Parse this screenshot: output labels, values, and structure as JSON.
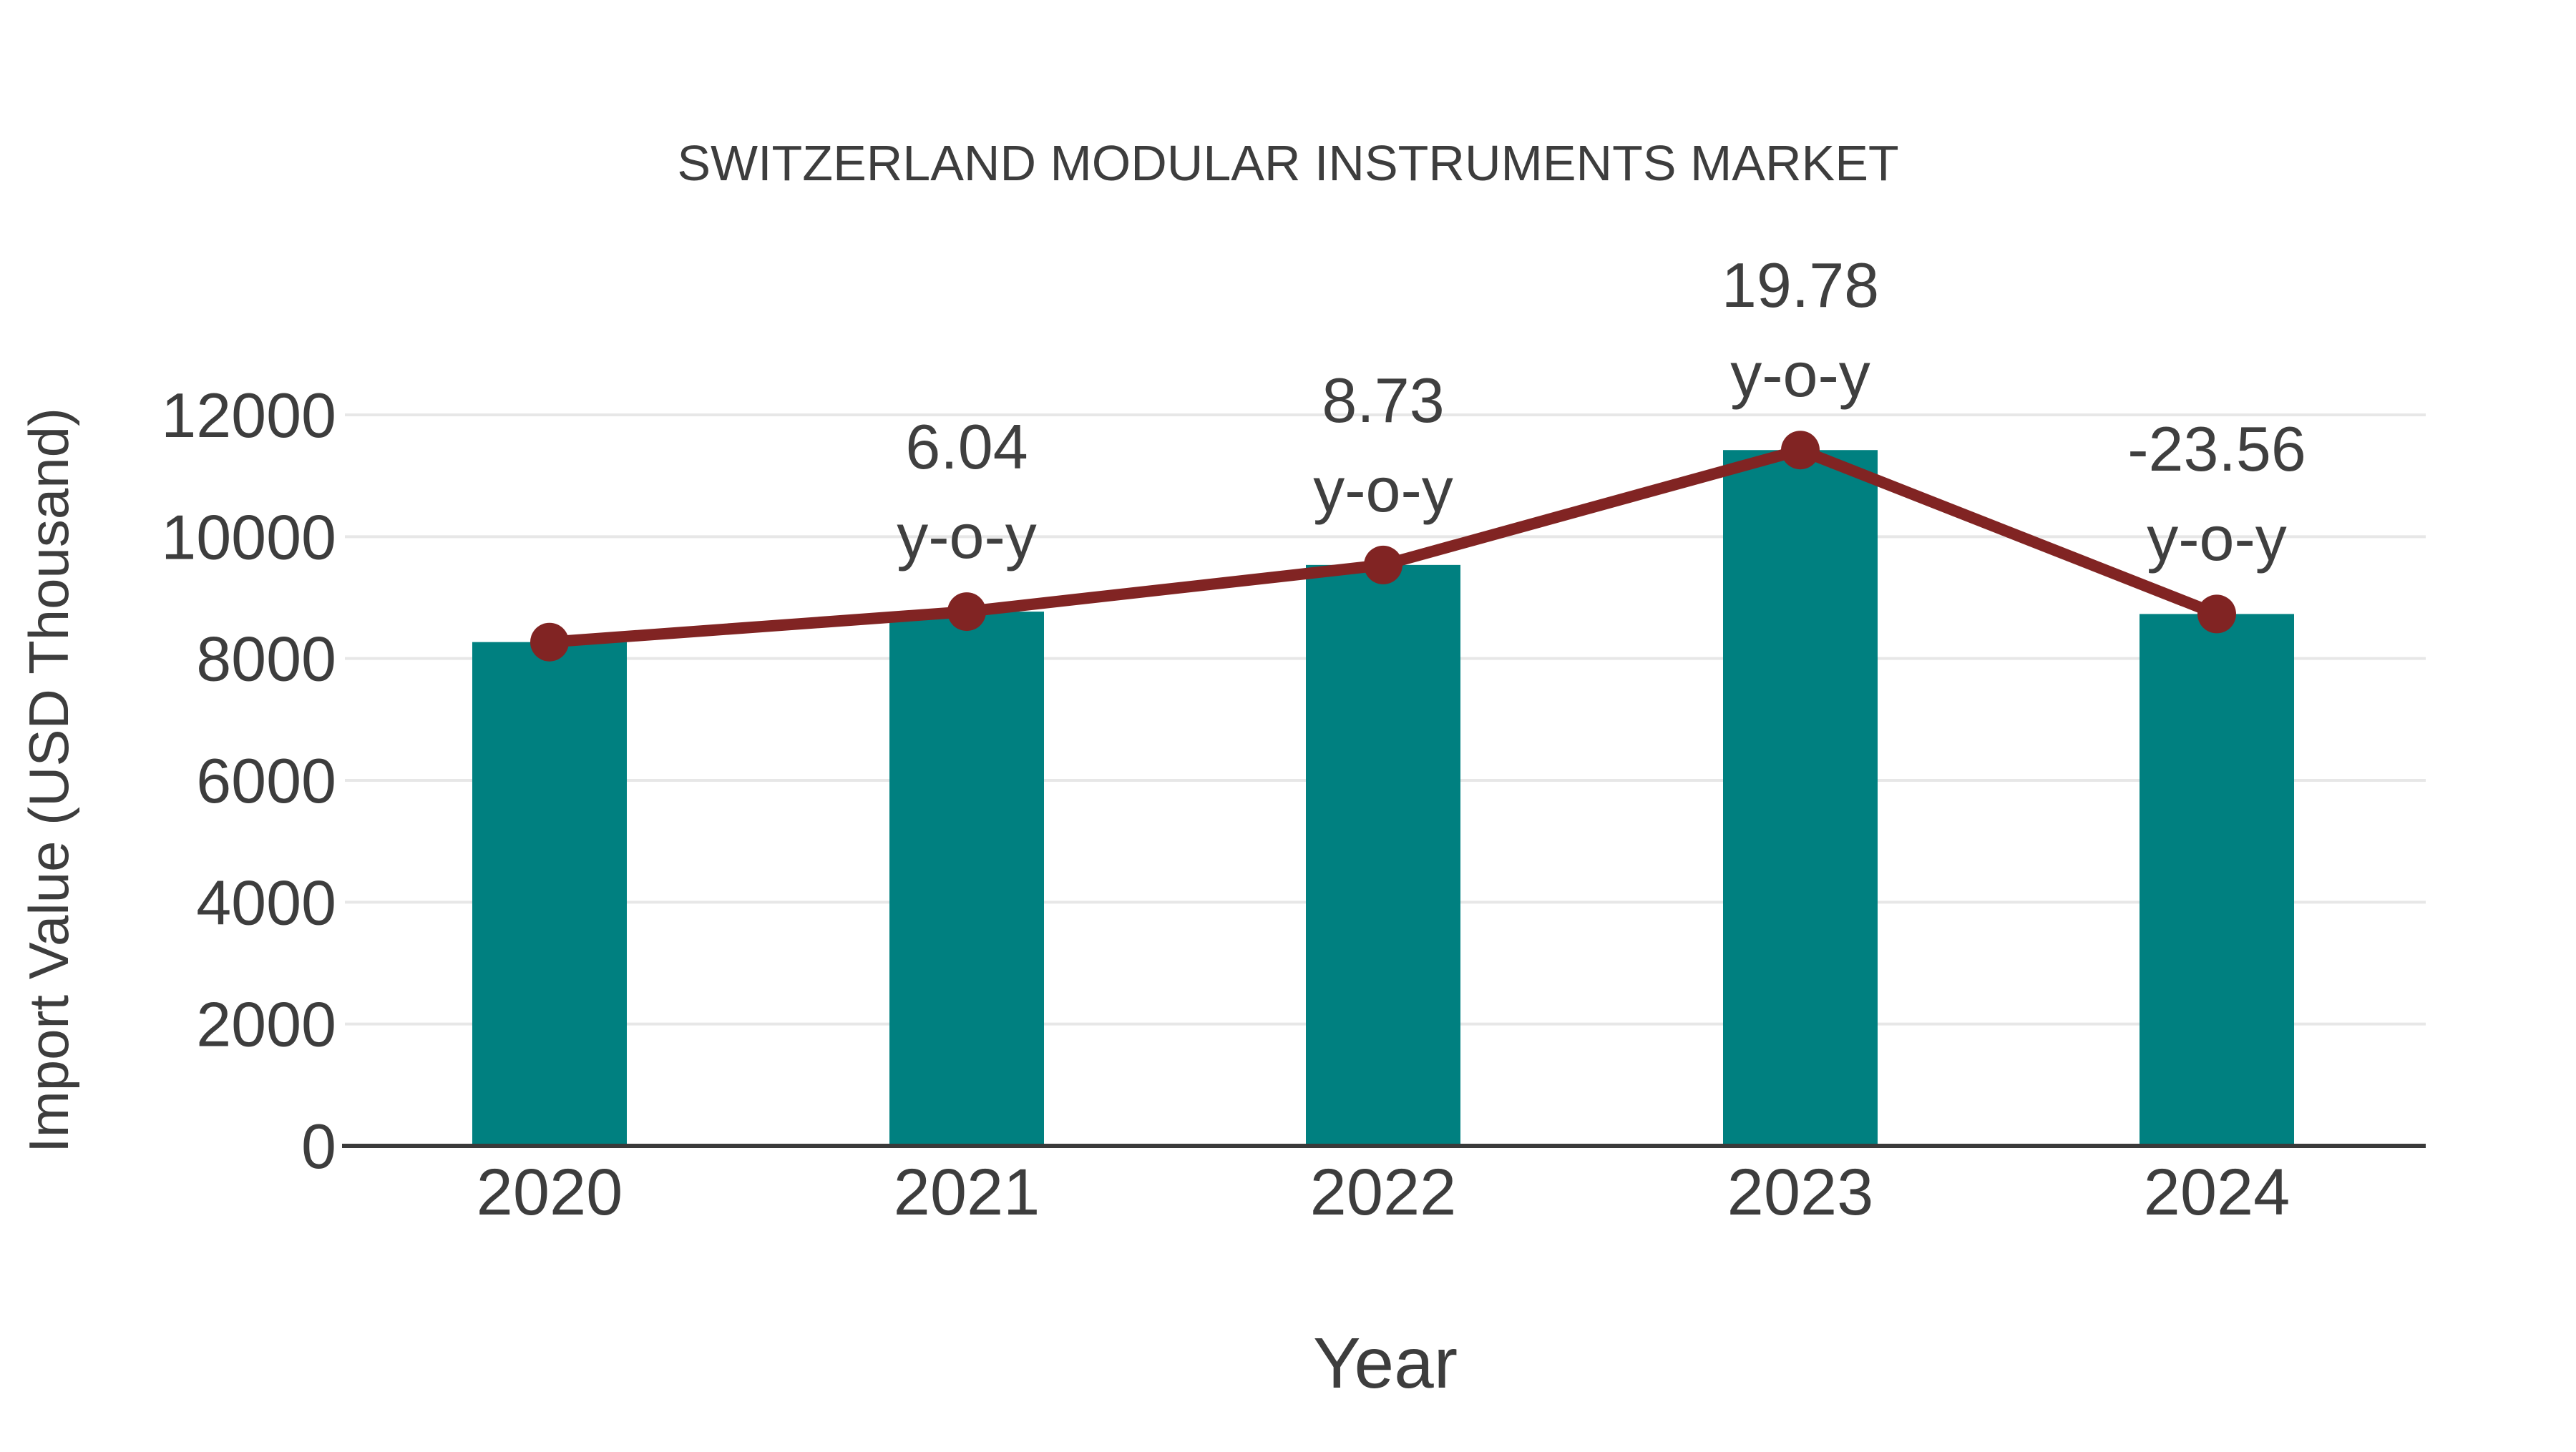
{
  "chart_data": {
    "type": "bar",
    "title": "SWITZERLAND MODULAR INSTRUMENTS MARKET",
    "xlabel": "Year",
    "ylabel": "Import Value (USD Thousand)",
    "categories": [
      "2020",
      "2021",
      "2022",
      "2023",
      "2024"
    ],
    "series": [
      {
        "name": "Import Value (USD Thousand)",
        "type": "bar",
        "color": "#008080",
        "values": [
          8270,
          8770,
          9536,
          11422,
          8731
        ]
      },
      {
        "name": "y-o-y",
        "type": "line",
        "color": "#812423",
        "plotted_at_bar_values": [
          8270,
          8770,
          9536,
          11422,
          8731
        ],
        "yoy_percent": [
          null,
          6.04,
          8.73,
          19.78,
          -23.56
        ]
      }
    ],
    "annotations": [
      {
        "category": "2021",
        "lines": [
          "6.04",
          "y-o-y"
        ]
      },
      {
        "category": "2022",
        "lines": [
          "8.73",
          "y-o-y"
        ]
      },
      {
        "category": "2023",
        "lines": [
          "19.78",
          "y-o-y"
        ]
      },
      {
        "category": "2024",
        "lines": [
          "-23.56",
          "y-o-y"
        ]
      }
    ],
    "ylim": [
      0,
      12000
    ],
    "yticks": [
      0,
      2000,
      4000,
      6000,
      8000,
      10000,
      12000
    ],
    "grid": "horizontal",
    "legend_position": "none",
    "colors": {
      "bar": "#008080",
      "line": "#812423",
      "marker": "#812423",
      "text": "#3d3d3d",
      "gridline": "#e7e7e7",
      "axis_line": "#3a3a3a",
      "background": "#ffffff"
    }
  }
}
